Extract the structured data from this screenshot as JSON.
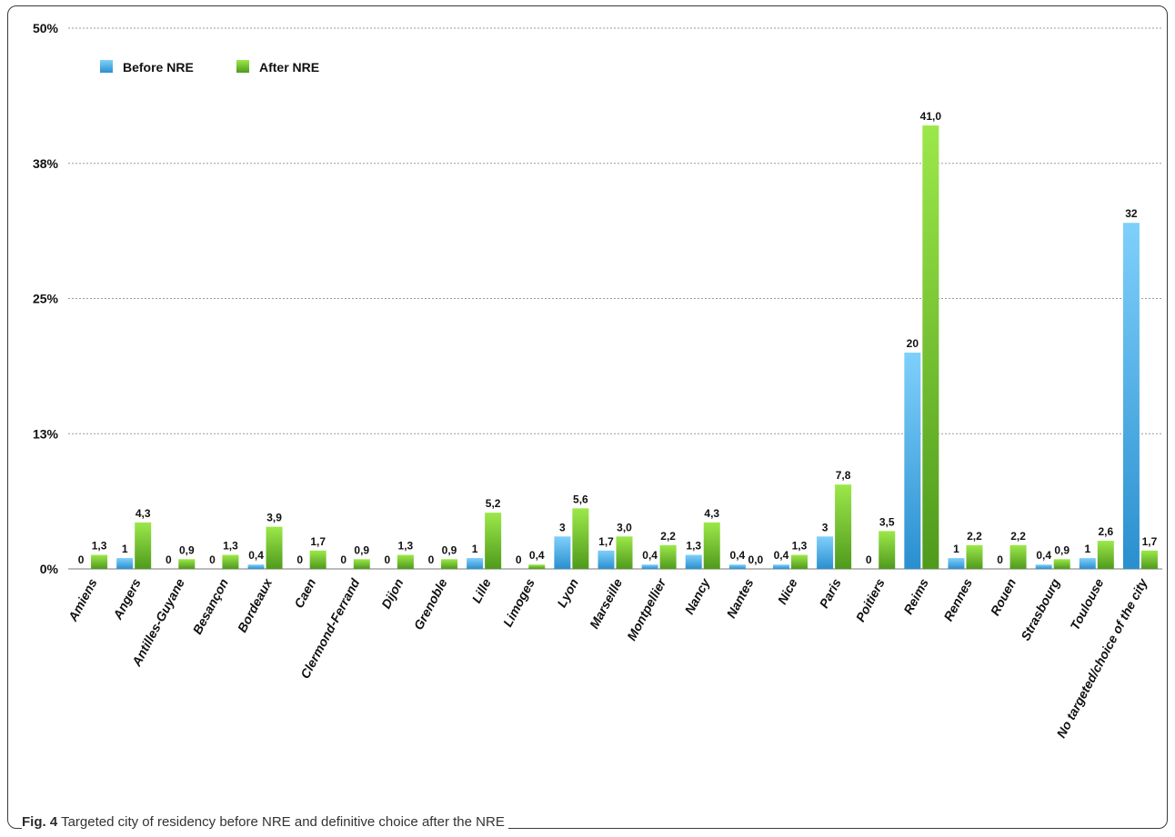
{
  "chart_data": {
    "type": "bar",
    "title": "",
    "xlabel": "",
    "ylabel": "",
    "ylim": [
      0,
      50
    ],
    "y_ticks": [
      "0%",
      "13%",
      "25%",
      "38%",
      "50%"
    ],
    "grid": true,
    "legend_position": "top-left",
    "categories": [
      "Amiens",
      "Angers",
      "Antilles-Guyane",
      "Besançon",
      "Bordeaux",
      "Caen",
      "Clermond-Ferrand",
      "Dijon",
      "Grenoble",
      "Lille",
      "Limoges",
      "Lyon",
      "Marseille",
      "Montpellier",
      "Nancy",
      "Nantes",
      "Nice",
      "Paris",
      "Poitiers",
      "Reims",
      "Rennes",
      "Rouen",
      "Strasbourg",
      "Toulouse",
      "No targeted/choice of the city"
    ],
    "series": [
      {
        "name": "Before NRE",
        "color": "#3aa3e0",
        "values": [
          0,
          1,
          0,
          0,
          0.4,
          0,
          0,
          0,
          0,
          1,
          0,
          3,
          1.7,
          0.4,
          1.3,
          0.4,
          0.4,
          3,
          0,
          20,
          1,
          0,
          0.4,
          1,
          32
        ],
        "labels": [
          "0",
          "1",
          "0",
          "0",
          "0,4",
          "0",
          "0",
          "0",
          "0",
          "1",
          "0",
          "3",
          "1,7",
          "0,4",
          "1,3",
          "0,4",
          "0,4",
          "3",
          "0",
          "20",
          "1",
          "0",
          "0,4",
          "1",
          "32"
        ]
      },
      {
        "name": "After NRE",
        "color": "#6ec22a",
        "values": [
          1.3,
          4.3,
          0.9,
          1.3,
          3.9,
          1.7,
          0.9,
          1.3,
          0.9,
          5.2,
          0.4,
          5.6,
          3.0,
          2.2,
          4.3,
          0.0,
          1.3,
          7.8,
          3.5,
          41.0,
          2.2,
          2.2,
          0.9,
          2.6,
          1.7
        ],
        "labels": [
          "1,3",
          "4,3",
          "0,9",
          "1,3",
          "3,9",
          "1,7",
          "0,9",
          "1,3",
          "0,9",
          "5,2",
          "0,4",
          "5,6",
          "3,0",
          "2,2",
          "4,3",
          "0,0",
          "1,3",
          "7,8",
          "3,5",
          "41,0",
          "2,2",
          "2,2",
          "0,9",
          "2,6",
          "1,7"
        ]
      }
    ]
  },
  "caption": {
    "label": "Fig. 4",
    "text": " Targeted city of residency before NRE and definitive choice after the NRE"
  }
}
